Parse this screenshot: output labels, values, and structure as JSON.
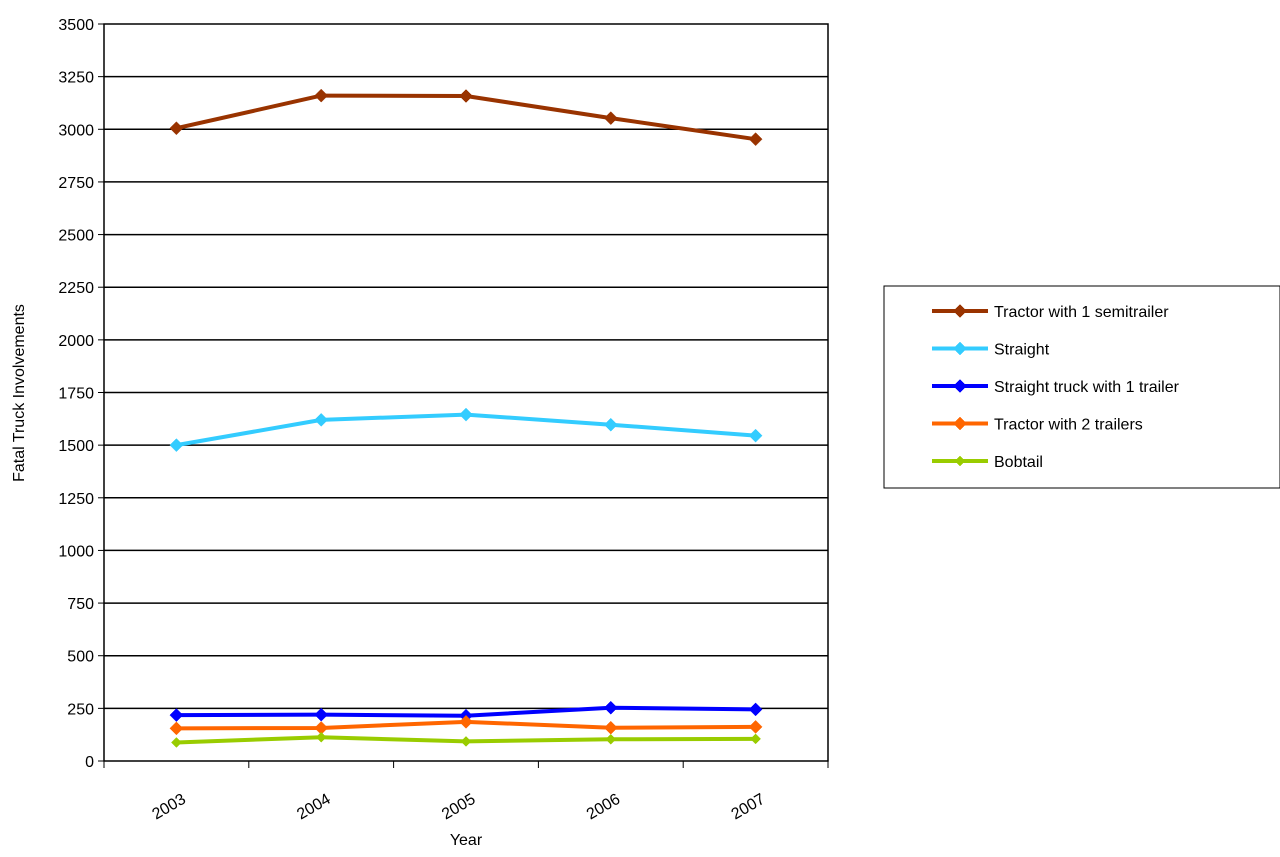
{
  "chart_data": {
    "type": "line",
    "title": "",
    "xlabel": "Year",
    "ylabel": "Fatal Truck Involvements",
    "categories": [
      "2003",
      "2004",
      "2005",
      "2006",
      "2007"
    ],
    "ylim": [
      0,
      3500
    ],
    "yticks": [
      0,
      250,
      500,
      750,
      1000,
      1250,
      1500,
      1750,
      2000,
      2250,
      2500,
      2750,
      3000,
      3250,
      3500
    ],
    "grid": "horizontal",
    "legend_position": "right",
    "series": [
      {
        "name": "Tractor with 1 semitrailer",
        "color": "#993300",
        "marker": "diamond",
        "values": [
          3005,
          3160,
          3158,
          3053,
          2953
        ]
      },
      {
        "name": "Straight",
        "color": "#33CCFF",
        "marker": "diamond",
        "values": [
          1500,
          1620,
          1645,
          1597,
          1545
        ]
      },
      {
        "name": "Straight truck with 1 trailer",
        "color": "#0000FF",
        "marker": "diamond",
        "values": [
          218,
          220,
          215,
          253,
          245
        ]
      },
      {
        "name": "Tractor with 2 trailers",
        "color": "#FF6600",
        "marker": "diamond",
        "values": [
          155,
          157,
          186,
          158,
          162
        ]
      },
      {
        "name": "Bobtail",
        "color": "#99CC00",
        "marker": "diamond-small",
        "values": [
          88,
          113,
          93,
          103,
          105
        ]
      }
    ]
  }
}
